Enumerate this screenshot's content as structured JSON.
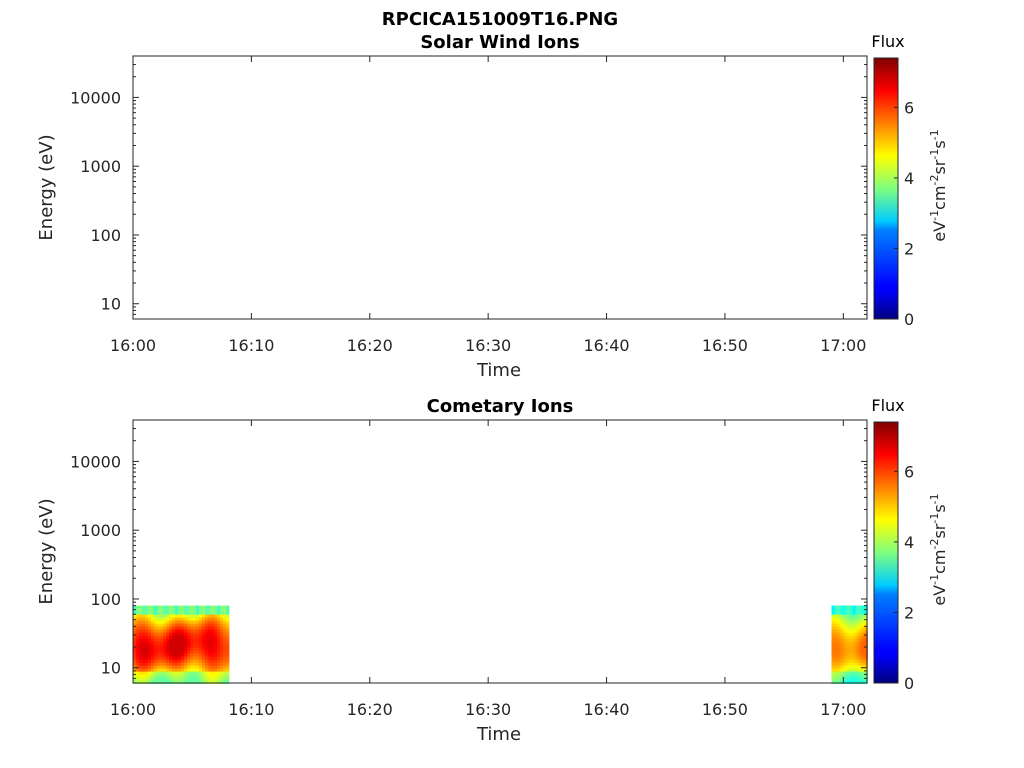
{
  "figure": {
    "title": "RPCICA151009T16.PNG"
  },
  "chart_data": [
    {
      "type": "heatmap",
      "title": "Solar Wind Ions",
      "xlabel": "Time",
      "ylabel": "Energy (eV)",
      "x_ticks": [
        "16:00",
        "16:10",
        "16:20",
        "16:30",
        "16:40",
        "16:50",
        "17:00"
      ],
      "y_ticks": [
        "10",
        "100",
        "1000",
        "10000"
      ],
      "y_scale": "log",
      "ylim": [
        6,
        40000
      ],
      "xlim": [
        "16:00",
        "17:02"
      ],
      "colorbar": {
        "title": "Flux",
        "label": "eV-1cm-2sr-1s-1",
        "ticks": [
          "0",
          "2",
          "4",
          "6"
        ],
        "range": [
          0,
          7.4
        ],
        "colormap": "jet"
      },
      "data": []
    },
    {
      "type": "heatmap",
      "title": "Cometary Ions",
      "xlabel": "Time",
      "ylabel": "Energy (eV)",
      "x_ticks": [
        "16:00",
        "16:10",
        "16:20",
        "16:30",
        "16:40",
        "16:50",
        "17:00"
      ],
      "y_ticks": [
        "10",
        "100",
        "1000",
        "10000"
      ],
      "y_scale": "log",
      "ylim": [
        6,
        40000
      ],
      "xlim": [
        "16:00",
        "17:02"
      ],
      "colorbar": {
        "title": "Flux",
        "label": "eV-1cm-2sr-1s-1",
        "ticks": [
          "0",
          "2",
          "4",
          "6"
        ],
        "range": [
          0,
          7.4
        ],
        "colormap": "jet"
      },
      "data": [
        {
          "t_start": "16:00",
          "t_end": "16:08",
          "e_min": 6,
          "e_max": 80,
          "flux_peak": 6.5,
          "flux_edge": 3.5
        },
        {
          "t_start": "16:59",
          "t_end": "17:02",
          "e_min": 6,
          "e_max": 80,
          "flux_peak": 5.5,
          "flux_edge": 3.0
        }
      ]
    }
  ]
}
